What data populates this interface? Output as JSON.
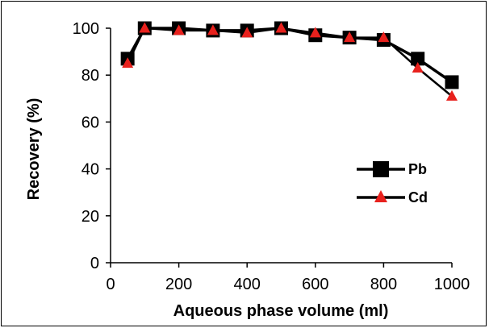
{
  "chart_data": {
    "type": "line",
    "title": "",
    "xlabel": "Aqueous phase volume (ml)",
    "ylabel": "Recovery (%)",
    "xlim": [
      0,
      1000
    ],
    "ylim": [
      0,
      100
    ],
    "xticks": [
      "0",
      "200",
      "400",
      "600",
      "800",
      "1000"
    ],
    "yticks": [
      "0",
      "20",
      "40",
      "60",
      "80",
      "100"
    ],
    "grid": false,
    "legend_position": "right",
    "x": [
      50,
      100,
      200,
      300,
      400,
      500,
      600,
      700,
      800,
      900,
      1000
    ],
    "series": [
      {
        "name": "Pb",
        "marker": "square",
        "color": "#000000",
        "marker_color": "#000000",
        "values": [
          87,
          100,
          100,
          99,
          99,
          100,
          97,
          96,
          95,
          87,
          77
        ]
      },
      {
        "name": "Cd",
        "marker": "triangle",
        "color": "#000000",
        "marker_color": "#e8211d",
        "values": [
          85,
          100,
          99,
          99,
          98,
          100,
          98,
          96,
          96,
          83,
          71
        ]
      }
    ]
  }
}
